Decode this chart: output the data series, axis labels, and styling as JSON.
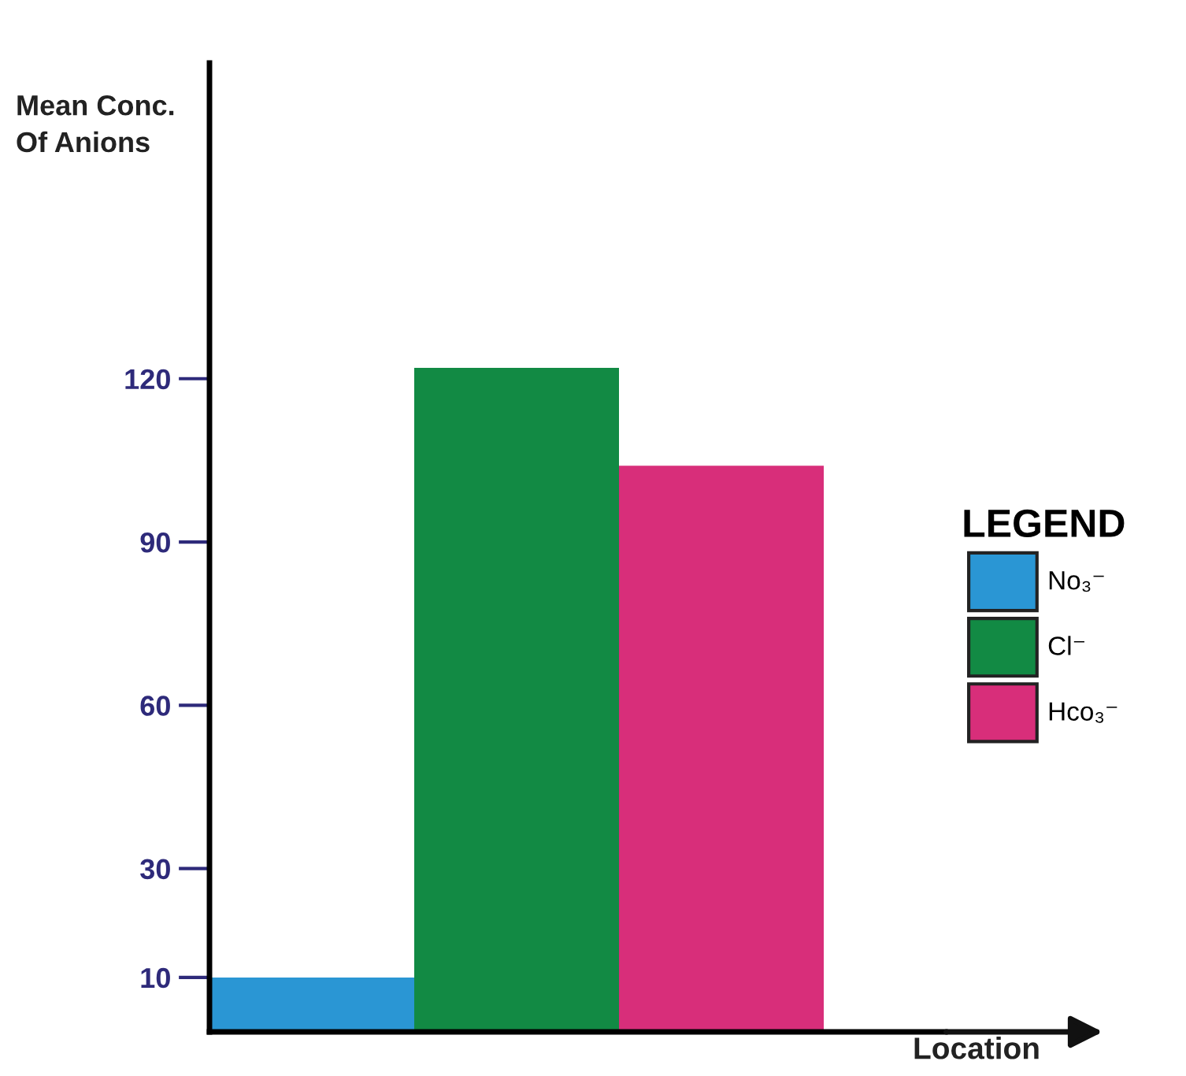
{
  "chart_data": {
    "type": "bar",
    "ylabel": "Mean Conc.\nOf Anions",
    "xlabel": "Location",
    "categories": [
      null,
      null,
      null
    ],
    "series": [
      {
        "name": "No₃⁻",
        "color": "#2a96d4",
        "values": [
          10,
          null,
          null
        ]
      },
      {
        "name": "Cl⁻",
        "color": "#128a44",
        "values": [
          null,
          122,
          null
        ]
      },
      {
        "name": "Hco₃⁻",
        "color": "#d82e7a",
        "values": [
          null,
          null,
          104
        ]
      }
    ],
    "legend_title": "LEGEND",
    "legend": "right",
    "ylim": [
      0,
      178
    ],
    "yticks": [
      10,
      30,
      60,
      90,
      120
    ],
    "grid": false
  }
}
